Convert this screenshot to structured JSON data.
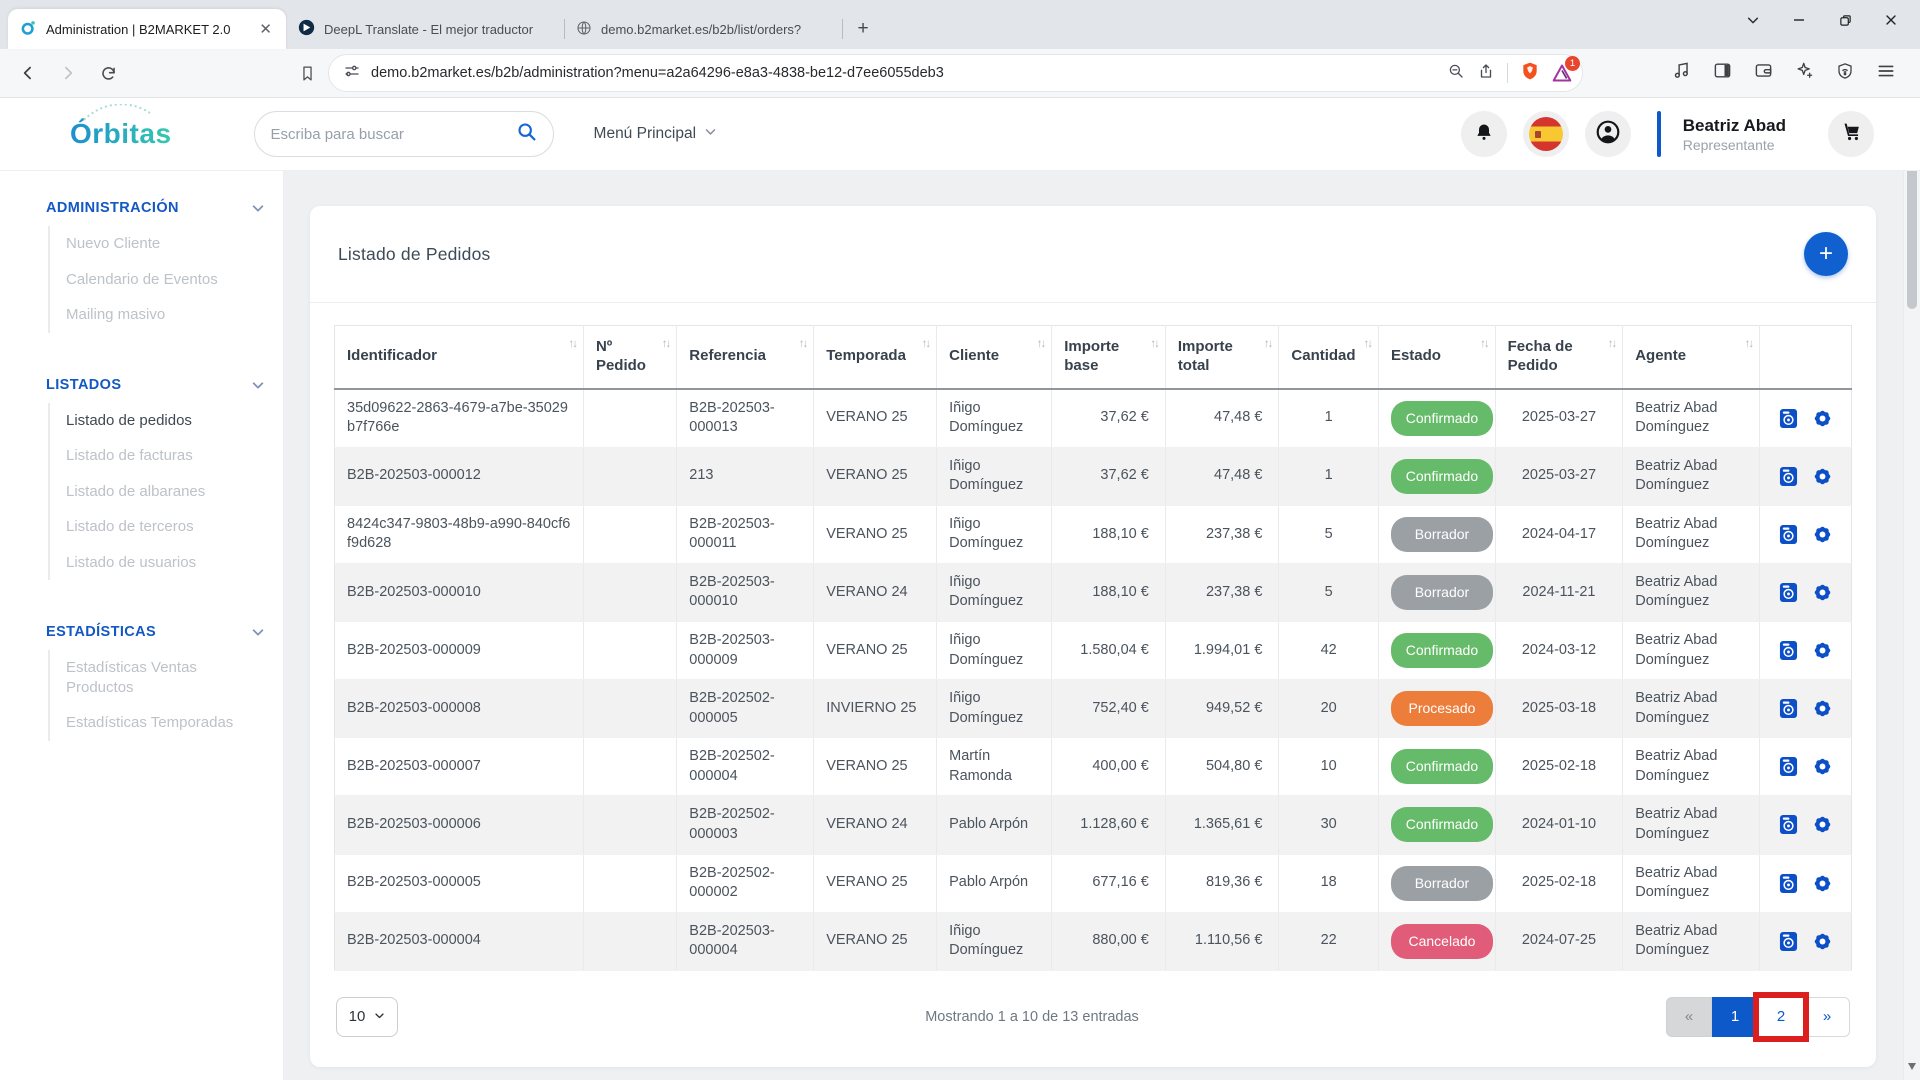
{
  "browser": {
    "tabs": [
      {
        "title": "Administration | B2MARKET 2.0",
        "icon": "orbitas-favicon",
        "active": true,
        "closable": true
      },
      {
        "title": "DeepL Translate - El mejor traductor",
        "icon": "deepl-favicon",
        "active": false,
        "closable": false
      },
      {
        "title": "demo.b2market.es/b2b/list/orders?",
        "icon": "globe-favicon",
        "active": false,
        "closable": false
      }
    ],
    "url": "demo.b2market.es/b2b/administration?menu=a2a64296-e8a3-4838-be12-d7ee6055deb3",
    "extension_badge": "1"
  },
  "header": {
    "logo_text": "Órbitas",
    "search_placeholder": "Escriba para buscar",
    "menu_label": "Menú Principal",
    "user_name": "Beatriz Abad",
    "user_role": "Representante"
  },
  "sidebar": {
    "sections": [
      {
        "title": "ADMINISTRACIÓN",
        "items": [
          {
            "label": "Nuevo Cliente",
            "active": false
          },
          {
            "label": "Calendario de Eventos",
            "active": false
          },
          {
            "label": "Mailing masivo",
            "active": false
          }
        ]
      },
      {
        "title": "LISTADOS",
        "items": [
          {
            "label": "Listado de pedidos",
            "active": true
          },
          {
            "label": "Listado de facturas",
            "active": false
          },
          {
            "label": "Listado de albaranes",
            "active": false
          },
          {
            "label": "Listado de terceros",
            "active": false
          },
          {
            "label": "Listado de usuarios",
            "active": false
          }
        ]
      },
      {
        "title": "ESTADÍSTICAS",
        "items": [
          {
            "label": "Estadísticas Ventas Productos",
            "active": false
          },
          {
            "label": "Estadísticas Temporadas",
            "active": false
          }
        ]
      }
    ]
  },
  "main": {
    "card_title": "Listado de Pedidos",
    "add_button_label": "+",
    "table": {
      "columns": [
        {
          "label": "Identificador",
          "sortable": true
        },
        {
          "label": "Nº Pedido",
          "sortable": true
        },
        {
          "label": "Referencia",
          "sortable": true
        },
        {
          "label": "Temporada",
          "sortable": true
        },
        {
          "label": "Cliente",
          "sortable": true
        },
        {
          "label": "Importe base",
          "sortable": true
        },
        {
          "label": "Importe total",
          "sortable": true
        },
        {
          "label": "Cantidad",
          "sortable": true
        },
        {
          "label": "Estado",
          "sortable": true
        },
        {
          "label": "Fecha de Pedido",
          "sortable": true
        },
        {
          "label": "Agente",
          "sortable": true
        },
        {
          "label": "",
          "sortable": false
        }
      ],
      "rows": [
        {
          "identificador": "35d09622-2863-4679-a7be-35029b7f766e",
          "n_pedido": "",
          "referencia": "B2B-202503-000013",
          "temporada": "VERANO 25",
          "cliente": "Iñigo Domínguez",
          "importe_base": "37,62 €",
          "importe_total": "47,48 €",
          "cantidad": "1",
          "estado": "Confirmado",
          "fecha_pedido": "2025-03-27",
          "agente": "Beatriz Abad Domínguez"
        },
        {
          "identificador": "B2B-202503-000012",
          "n_pedido": "",
          "referencia": "213",
          "temporada": "VERANO 25",
          "cliente": "Iñigo Domínguez",
          "importe_base": "37,62 €",
          "importe_total": "47,48 €",
          "cantidad": "1",
          "estado": "Confirmado",
          "fecha_pedido": "2025-03-27",
          "agente": "Beatriz Abad Domínguez"
        },
        {
          "identificador": "8424c347-9803-48b9-a990-840cf6f9d628",
          "n_pedido": "",
          "referencia": "B2B-202503-000011",
          "temporada": "VERANO 25",
          "cliente": "Iñigo Domínguez",
          "importe_base": "188,10 €",
          "importe_total": "237,38 €",
          "cantidad": "5",
          "estado": "Borrador",
          "fecha_pedido": "2024-04-17",
          "agente": "Beatriz Abad Domínguez"
        },
        {
          "identificador": "B2B-202503-000010",
          "n_pedido": "",
          "referencia": "B2B-202503-000010",
          "temporada": "VERANO 24",
          "cliente": "Iñigo Domínguez",
          "importe_base": "188,10 €",
          "importe_total": "237,38 €",
          "cantidad": "5",
          "estado": "Borrador",
          "fecha_pedido": "2024-11-21",
          "agente": "Beatriz Abad Domínguez"
        },
        {
          "identificador": "B2B-202503-000009",
          "n_pedido": "",
          "referencia": "B2B-202503-000009",
          "temporada": "VERANO 25",
          "cliente": "Iñigo Domínguez",
          "importe_base": "1.580,04 €",
          "importe_total": "1.994,01 €",
          "cantidad": "42",
          "estado": "Confirmado",
          "fecha_pedido": "2024-03-12",
          "agente": "Beatriz Abad Domínguez"
        },
        {
          "identificador": "B2B-202503-000008",
          "n_pedido": "",
          "referencia": "B2B-202502-000005",
          "temporada": "INVIERNO 25",
          "cliente": "Iñigo Domínguez",
          "importe_base": "752,40 €",
          "importe_total": "949,52 €",
          "cantidad": "20",
          "estado": "Procesado",
          "fecha_pedido": "2025-03-18",
          "agente": "Beatriz Abad Domínguez"
        },
        {
          "identificador": "B2B-202503-000007",
          "n_pedido": "",
          "referencia": "B2B-202502-000004",
          "temporada": "VERANO 25",
          "cliente": "Martín Ramonda",
          "importe_base": "400,00 €",
          "importe_total": "504,80 €",
          "cantidad": "10",
          "estado": "Confirmado",
          "fecha_pedido": "2025-02-18",
          "agente": "Beatriz Abad Domínguez"
        },
        {
          "identificador": "B2B-202503-000006",
          "n_pedido": "",
          "referencia": "B2B-202502-000003",
          "temporada": "VERANO 24",
          "cliente": "Pablo Arpón",
          "importe_base": "1.128,60 €",
          "importe_total": "1.365,61 €",
          "cantidad": "30",
          "estado": "Confirmado",
          "fecha_pedido": "2024-01-10",
          "agente": "Beatriz Abad Domínguez"
        },
        {
          "identificador": "B2B-202503-000005",
          "n_pedido": "",
          "referencia": "B2B-202502-000002",
          "temporada": "VERANO 25",
          "cliente": "Pablo Arpón",
          "importe_base": "677,16 €",
          "importe_total": "819,36 €",
          "cantidad": "18",
          "estado": "Borrador",
          "fecha_pedido": "2025-02-18",
          "agente": "Beatriz Abad Domínguez"
        },
        {
          "identificador": "B2B-202503-000004",
          "n_pedido": "",
          "referencia": "B2B-202503-000004",
          "temporada": "VERANO 25",
          "cliente": "Iñigo Domínguez",
          "importe_base": "880,00 €",
          "importe_total": "1.110,56 €",
          "cantidad": "22",
          "estado": "Cancelado",
          "fecha_pedido": "2024-07-25",
          "agente": "Beatriz Abad Domínguez"
        }
      ]
    },
    "footer": {
      "page_size": "10",
      "showing_text": "Mostrando 1 a 10 de 13 entradas",
      "pagination": {
        "prev": "«",
        "pages": [
          "1",
          "2"
        ],
        "active_page": "1",
        "highlighted_page": "2",
        "next": "»"
      }
    }
  },
  "status_colors": {
    "Confirmado": "#66bb6a",
    "Borrador": "#9ba0a5",
    "Procesado": "#ed7d3a",
    "Cancelado": "#e05c78"
  },
  "accent_color": "#0d59c9",
  "annotation": {
    "highlight_color": "#db1f1f",
    "highlight_target": "page-2"
  }
}
